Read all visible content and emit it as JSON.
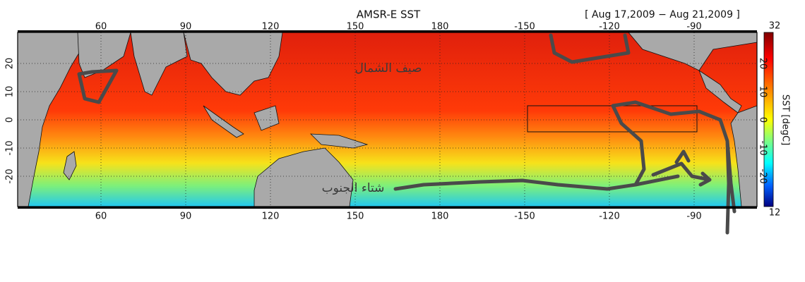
{
  "title": "AMSR-E SST",
  "date_range": "[ Aug 17,2009 − Aug 21,2009 ]",
  "map": {
    "lon_ticks": [
      60,
      90,
      120,
      150,
      180,
      -150,
      -120,
      -90
    ],
    "lat_ticks": [
      20,
      10,
      0,
      -10,
      -20
    ],
    "labels": [
      "صيف الشمال",
      "شتاء الجنوب"
    ]
  },
  "colorbar": {
    "label": "SST [degC]",
    "max": 32,
    "min": 12
  }
}
